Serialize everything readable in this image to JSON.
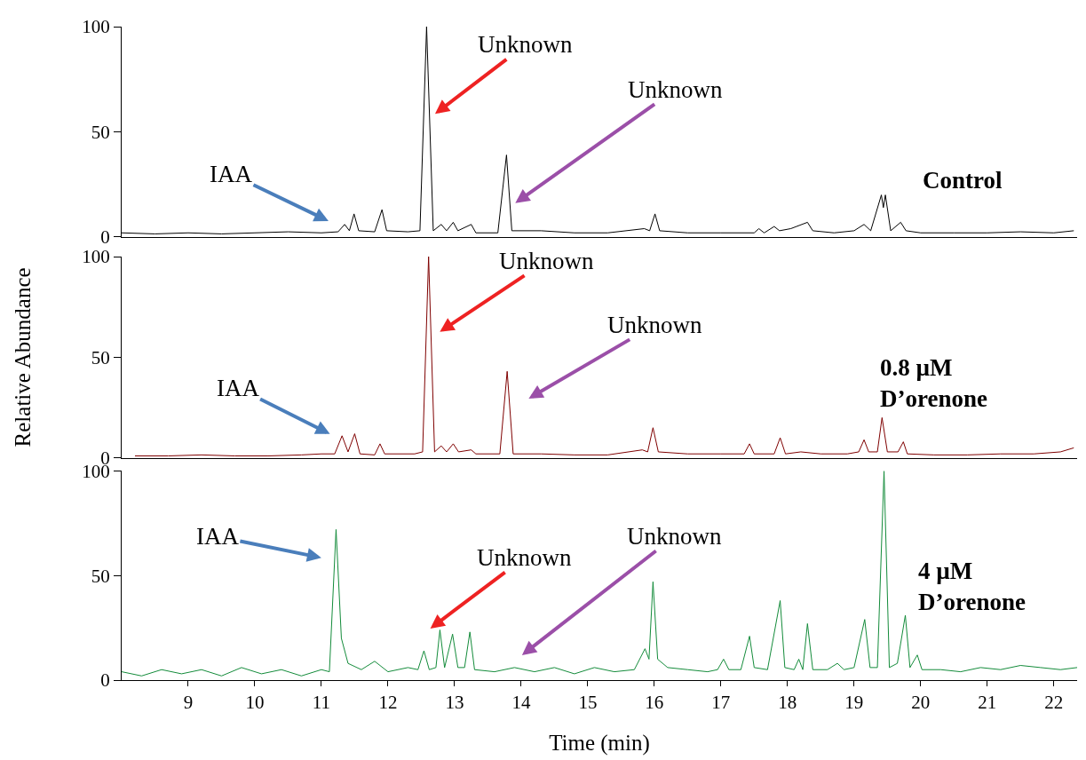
{
  "chart_data": [
    {
      "type": "line",
      "xlim": [
        8.0,
        22.35
      ],
      "ylim": [
        0,
        100
      ],
      "yticks": [
        0,
        50,
        100
      ],
      "tick_labels": "y",
      "legend": false,
      "grid": false,
      "marker": "none",
      "annotations": [
        "IAA",
        "Unknown",
        "Unknown",
        "Control"
      ],
      "series": [
        {
          "color": "#000000",
          "x": [
            8.0,
            8.5,
            9.0,
            9.5,
            10.0,
            10.5,
            11.0,
            11.25,
            11.35,
            11.42,
            11.49,
            11.56,
            11.8,
            11.91,
            11.98,
            12.3,
            12.48,
            12.58,
            12.68,
            12.8,
            12.88,
            12.98,
            13.05,
            13.25,
            13.32,
            13.65,
            13.78,
            13.86,
            14.3,
            14.8,
            15.3,
            15.85,
            15.93,
            16.01,
            16.08,
            16.5,
            17.0,
            17.5,
            17.57,
            17.65,
            17.8,
            17.88,
            18.05,
            18.3,
            18.38,
            18.7,
            19.0,
            19.15,
            19.25,
            19.41,
            19.44,
            19.47,
            19.55,
            19.7,
            19.78,
            20.0,
            20.5,
            21.0,
            21.5,
            22.0,
            22.3
          ],
          "values": [
            2,
            1.5,
            2,
            1.5,
            2,
            2.5,
            2,
            2.5,
            6,
            3,
            11,
            3,
            2.5,
            13,
            3,
            2.5,
            3,
            100,
            3,
            6,
            3,
            7,
            3,
            6,
            2,
            2,
            39,
            3,
            3,
            2,
            2,
            4,
            3,
            11,
            3,
            2,
            2,
            2,
            4,
            2,
            5,
            3,
            4,
            7,
            3,
            2,
            3,
            6,
            3,
            20,
            14,
            20,
            3,
            7,
            3,
            2,
            2,
            2,
            2.5,
            2,
            3
          ]
        }
      ]
    },
    {
      "type": "line",
      "xlim": [
        8.0,
        22.35
      ],
      "ylim": [
        0,
        100
      ],
      "yticks": [
        0,
        50,
        100
      ],
      "tick_labels": "y",
      "legend": false,
      "grid": false,
      "marker": "none",
      "ylabel": "Relative Abundance",
      "annotations": [
        "IAA",
        "Unknown",
        "Unknown",
        "0.8 µM D’orenone"
      ],
      "series": [
        {
          "color": "#7f0000",
          "x": [
            8.2,
            8.7,
            9.2,
            9.7,
            10.2,
            10.7,
            11.0,
            11.2,
            11.31,
            11.4,
            11.5,
            11.58,
            11.8,
            11.88,
            11.95,
            12.4,
            12.52,
            12.61,
            12.7,
            12.8,
            12.88,
            12.98,
            13.06,
            13.25,
            13.32,
            13.68,
            13.79,
            13.88,
            14.3,
            14.8,
            15.3,
            15.82,
            15.9,
            15.98,
            16.06,
            16.5,
            17.0,
            17.35,
            17.43,
            17.5,
            17.8,
            17.89,
            17.97,
            18.2,
            18.5,
            18.9,
            19.07,
            19.15,
            19.22,
            19.35,
            19.42,
            19.5,
            19.66,
            19.74,
            19.8,
            20.2,
            20.7,
            21.2,
            21.7,
            22.1,
            22.3
          ],
          "values": [
            1,
            1,
            1.5,
            1,
            1,
            1.5,
            2,
            2,
            11,
            3,
            12,
            2,
            1.5,
            7,
            2,
            2,
            3,
            100,
            3,
            6,
            3,
            7,
            3,
            4,
            2,
            2,
            43,
            2,
            2,
            1.5,
            1.5,
            4,
            3,
            15,
            3,
            2,
            2,
            2,
            7,
            2,
            2,
            10,
            2,
            3,
            2,
            2,
            3,
            9,
            3,
            3,
            20,
            3,
            3,
            8,
            2,
            1.5,
            1.5,
            2,
            2,
            3,
            5
          ]
        }
      ]
    },
    {
      "type": "line",
      "xlim": [
        8.0,
        22.35
      ],
      "ylim": [
        0,
        100
      ],
      "yticks": [
        0,
        50,
        100
      ],
      "xticks": [
        9,
        10,
        11,
        12,
        13,
        14,
        15,
        16,
        17,
        18,
        19,
        20,
        21,
        22
      ],
      "xlabel": "Time (min)",
      "legend": false,
      "grid": false,
      "marker": "none",
      "annotations": [
        "IAA",
        "Unknown",
        "Unknown",
        "4 µM D’orenone"
      ],
      "series": [
        {
          "color": "#138b3a",
          "x": [
            8.0,
            8.3,
            8.6,
            8.9,
            9.2,
            9.5,
            9.8,
            10.1,
            10.4,
            10.7,
            11.0,
            11.12,
            11.22,
            11.3,
            11.4,
            11.6,
            11.8,
            12.0,
            12.3,
            12.45,
            12.54,
            12.62,
            12.72,
            12.78,
            12.85,
            12.97,
            13.05,
            13.15,
            13.23,
            13.3,
            13.6,
            13.9,
            14.2,
            14.5,
            14.8,
            15.1,
            15.4,
            15.7,
            15.86,
            15.92,
            15.98,
            16.05,
            16.2,
            16.5,
            16.8,
            16.95,
            17.04,
            17.12,
            17.3,
            17.43,
            17.5,
            17.7,
            17.89,
            17.96,
            18.1,
            18.17,
            18.23,
            18.3,
            18.38,
            18.6,
            18.75,
            18.85,
            19.0,
            19.16,
            19.24,
            19.35,
            19.45,
            19.53,
            19.65,
            19.77,
            19.84,
            19.95,
            20.02,
            20.3,
            20.6,
            20.9,
            21.2,
            21.5,
            21.8,
            22.1,
            22.35
          ],
          "values": [
            4,
            2,
            5,
            3,
            5,
            2,
            6,
            3,
            5,
            2,
            5,
            4,
            72,
            20,
            8,
            5,
            9,
            4,
            6,
            5,
            14,
            5,
            6,
            24,
            6,
            22,
            6,
            6,
            23,
            5,
            4,
            6,
            4,
            6,
            3,
            6,
            4,
            5,
            15,
            10,
            47,
            10,
            6,
            5,
            4,
            5,
            10,
            5,
            5,
            21,
            6,
            5,
            38,
            6,
            5,
            10,
            5,
            27,
            5,
            5,
            8,
            5,
            6,
            29,
            6,
            6,
            100,
            6,
            8,
            31,
            6,
            12,
            5,
            5,
            4,
            6,
            5,
            7,
            6,
            5,
            6
          ]
        }
      ]
    }
  ]
}
